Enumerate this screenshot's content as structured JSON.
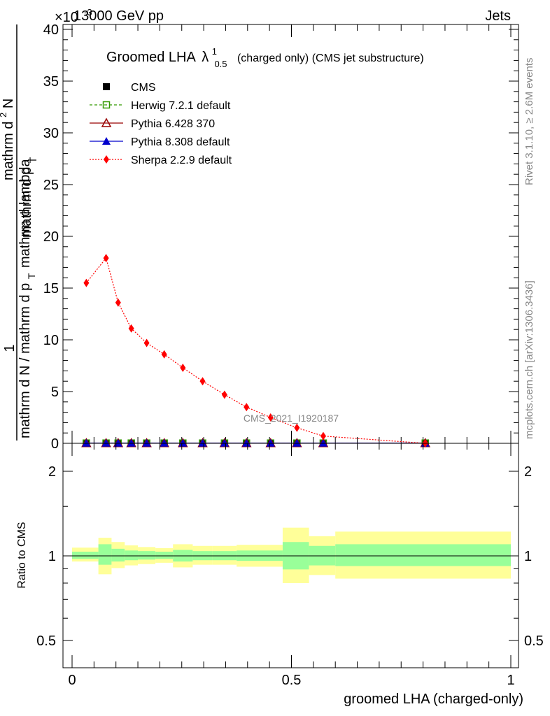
{
  "header": {
    "energy": "13000 GeV pp",
    "exponent_mark": "×10",
    "exponent_power": "-3",
    "group": "Jets"
  },
  "side_labels": {
    "rivet": "Rivet 3.1.10, ≥ 2.6M events",
    "mcplots": "mcplots.cern.ch [arXiv:1306.3436]"
  },
  "watermark": "CMS_2021_I1920187",
  "chart_data": [
    {
      "type": "scatter",
      "title_main": "Groomed LHA",
      "title_symbol": "λ",
      "title_sup": "1",
      "title_sub": "0.5",
      "title_rest": "(charged only) (CMS jet substructure)",
      "ylabel_num": "1",
      "ylabel_den": "mathrm d N / mathrm d p",
      "ylabel_den_sub": "T",
      "ylabel_right": "mathrm d",
      "ylabel_right_sup": "2",
      "ylabel_right_tail": "N",
      "ylabel_right_den": "mathrm d p",
      "ylabel_right_den_sub": "T",
      "ylabel_right_den_tail": "mathrm d lambda",
      "xlim": [
        0,
        1
      ],
      "ylim": [
        0,
        40
      ],
      "yticks": [
        "0",
        "5",
        "10",
        "15",
        "20",
        "25",
        "30",
        "35",
        "40"
      ],
      "legend_position": "top-left",
      "x": [
        0.0325,
        0.0775,
        0.105,
        0.135,
        0.17,
        0.21,
        0.2525,
        0.2975,
        0.3475,
        0.3975,
        0.4525,
        0.5125,
        0.5725,
        0.805
      ],
      "series": [
        {
          "name": "CMS",
          "color": "#000000",
          "marker": "square-filled",
          "values": [
            0.02,
            0.02,
            0.02,
            0.02,
            0.02,
            0.02,
            0.02,
            0.02,
            0.02,
            0.02,
            0.02,
            0.02,
            0.02,
            0.02
          ]
        },
        {
          "name": "Herwig 7.2.1 default",
          "color": "#339900",
          "marker": "square-open",
          "line": "dashed",
          "values": [
            0.02,
            0.02,
            0.02,
            0.02,
            0.02,
            0.02,
            0.02,
            0.02,
            0.02,
            0.02,
            0.02,
            0.02,
            0.02,
            0.02
          ]
        },
        {
          "name": "Pythia 6.428 370",
          "color": "#990000",
          "marker": "triangle-open",
          "line": "solid",
          "values": [
            0.02,
            0.02,
            0.02,
            0.02,
            0.02,
            0.02,
            0.02,
            0.02,
            0.02,
            0.02,
            0.02,
            0.02,
            0.02,
            0.02
          ]
        },
        {
          "name": "Pythia 8.308 default",
          "color": "#0000cc",
          "marker": "triangle-filled",
          "line": "solid",
          "values": [
            0.02,
            0.02,
            0.02,
            0.02,
            0.02,
            0.02,
            0.02,
            0.02,
            0.02,
            0.02,
            0.02,
            0.02,
            0.02,
            0.02
          ]
        },
        {
          "name": "Sherpa 2.2.9 default",
          "color": "#ff0000",
          "marker": "diamond-filled",
          "line": "dotted",
          "values": [
            15.5,
            17.9,
            13.6,
            11.1,
            9.7,
            8.6,
            7.3,
            6.0,
            4.7,
            3.5,
            2.5,
            1.5,
            0.7,
            0.0
          ]
        }
      ]
    },
    {
      "type": "area",
      "ylabel": "Ratio to CMS",
      "xlabel": "groomed LHA (charged-only)",
      "xlim": [
        0,
        1
      ],
      "ylim": [
        0.43,
        2.5
      ],
      "log_y": true,
      "yticks": [
        0.5,
        1,
        2
      ],
      "ytick_labels": [
        "0.5",
        "1",
        "2"
      ],
      "xticks": [
        0,
        0.5,
        1
      ],
      "xtick_labels": [
        "0",
        "0.5",
        "1"
      ],
      "band_colors": {
        "inner": "#99ff99",
        "outer": "#ffff99"
      },
      "bins": [
        {
          "lo": 0.0,
          "hi": 0.06,
          "in_lo": 0.975,
          "in_hi": 1.035,
          "out_lo": 0.955,
          "out_hi": 1.07
        },
        {
          "lo": 0.06,
          "hi": 0.09,
          "in_lo": 0.93,
          "in_hi": 1.1,
          "out_lo": 0.86,
          "out_hi": 1.16
        },
        {
          "lo": 0.09,
          "hi": 0.12,
          "in_lo": 0.955,
          "in_hi": 1.06,
          "out_lo": 0.905,
          "out_hi": 1.12
        },
        {
          "lo": 0.12,
          "hi": 0.15,
          "in_lo": 0.965,
          "in_hi": 1.045,
          "out_lo": 0.925,
          "out_hi": 1.09
        },
        {
          "lo": 0.15,
          "hi": 0.19,
          "in_lo": 0.97,
          "in_hi": 1.04,
          "out_lo": 0.935,
          "out_hi": 1.075
        },
        {
          "lo": 0.19,
          "hi": 0.23,
          "in_lo": 0.975,
          "in_hi": 1.035,
          "out_lo": 0.945,
          "out_hi": 1.065
        },
        {
          "lo": 0.23,
          "hi": 0.275,
          "in_lo": 0.955,
          "in_hi": 1.05,
          "out_lo": 0.91,
          "out_hi": 1.1
        },
        {
          "lo": 0.275,
          "hi": 0.32,
          "in_lo": 0.965,
          "in_hi": 1.04,
          "out_lo": 0.93,
          "out_hi": 1.085
        },
        {
          "lo": 0.32,
          "hi": 0.375,
          "in_lo": 0.965,
          "in_hi": 1.04,
          "out_lo": 0.93,
          "out_hi": 1.085
        },
        {
          "lo": 0.375,
          "hi": 0.48,
          "in_lo": 0.96,
          "in_hi": 1.045,
          "out_lo": 0.915,
          "out_hi": 1.095
        },
        {
          "lo": 0.48,
          "hi": 0.54,
          "in_lo": 0.895,
          "in_hi": 1.12,
          "out_lo": 0.8,
          "out_hi": 1.26
        },
        {
          "lo": 0.54,
          "hi": 0.6,
          "in_lo": 0.925,
          "in_hi": 1.085,
          "out_lo": 0.855,
          "out_hi": 1.175
        },
        {
          "lo": 0.6,
          "hi": 1.0,
          "in_lo": 0.92,
          "in_hi": 1.1,
          "out_lo": 0.83,
          "out_hi": 1.22
        }
      ]
    }
  ]
}
